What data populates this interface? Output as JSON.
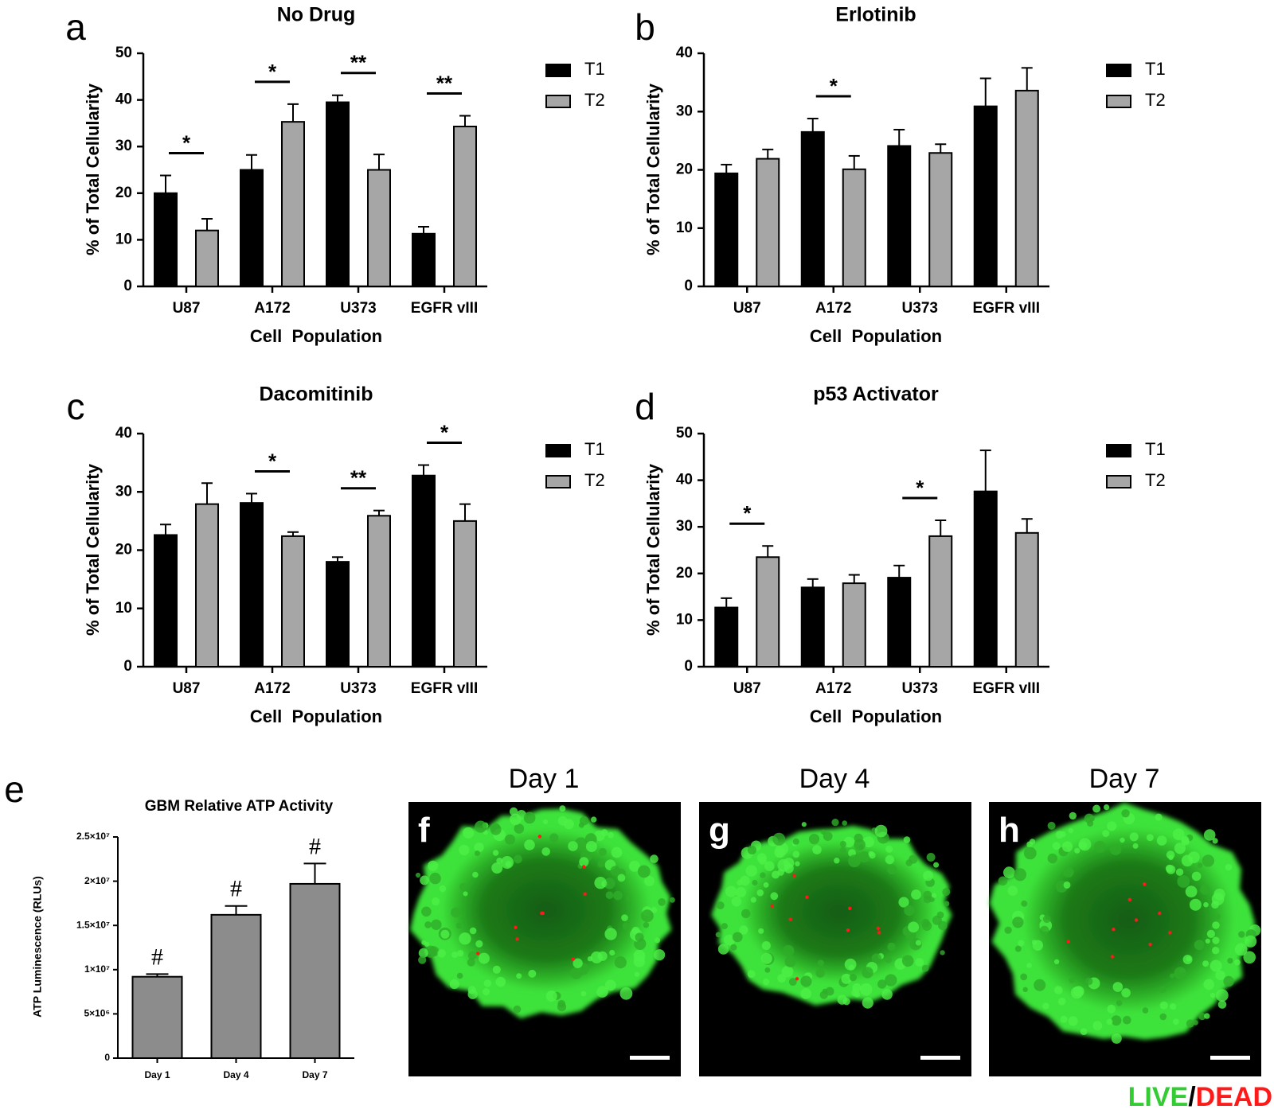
{
  "chart_data": [
    {
      "panel": "a",
      "type": "bar",
      "title": "No Drug",
      "xlabel": "Cell  Population",
      "ylabel": "% of Total Cellularity",
      "categories": [
        "U87",
        "A172",
        "U373",
        "EGFR vIII"
      ],
      "ylim": [
        0,
        50
      ],
      "yticks": [
        "0",
        "10",
        "20",
        "30",
        "40",
        "50"
      ],
      "series": [
        {
          "name": "T1",
          "values": [
            20,
            25,
            39.5,
            11.3
          ],
          "errors": [
            3.8,
            3.2,
            1.5,
            1.5
          ]
        },
        {
          "name": "T2",
          "values": [
            12,
            35.3,
            25,
            34.3
          ],
          "errors": [
            2.5,
            3.8,
            3.3,
            2.3
          ]
        }
      ],
      "significance": [
        {
          "category": "U87",
          "label": "*"
        },
        {
          "category": "A172",
          "label": "*"
        },
        {
          "category": "U373",
          "label": "**"
        },
        {
          "category": "EGFR vIII",
          "label": "**"
        }
      ]
    },
    {
      "panel": "b",
      "type": "bar",
      "title": "Erlotinib",
      "xlabel": "Cell  Population",
      "ylabel": "% of Total Cellularity",
      "categories": [
        "U87",
        "A172",
        "U373",
        "EGFR vIII"
      ],
      "ylim": [
        0,
        40
      ],
      "yticks": [
        "0",
        "10",
        "20",
        "30",
        "40"
      ],
      "series": [
        {
          "name": "T1",
          "values": [
            19.4,
            26.5,
            24.1,
            30.9
          ],
          "errors": [
            1.5,
            2.3,
            2.8,
            4.8
          ]
        },
        {
          "name": "T2",
          "values": [
            21.9,
            20.1,
            22.9,
            33.6
          ],
          "errors": [
            1.6,
            2.3,
            1.5,
            3.9
          ]
        }
      ],
      "significance": [
        {
          "category": "A172",
          "label": "*"
        }
      ]
    },
    {
      "panel": "c",
      "type": "bar",
      "title": "Dacomitinib",
      "xlabel": "Cell  Population",
      "ylabel": "% of Total Cellularity",
      "categories": [
        "U87",
        "A172",
        "U373",
        "EGFR vIII"
      ],
      "ylim": [
        0,
        40
      ],
      "yticks": [
        "0",
        "10",
        "20",
        "30",
        "40"
      ],
      "series": [
        {
          "name": "T1",
          "values": [
            22.6,
            28.1,
            18,
            32.8
          ],
          "errors": [
            1.8,
            1.6,
            0.8,
            1.8
          ]
        },
        {
          "name": "T2",
          "values": [
            27.9,
            22.4,
            25.9,
            25
          ],
          "errors": [
            3.6,
            0.7,
            0.9,
            2.9
          ]
        }
      ],
      "significance": [
        {
          "category": "A172",
          "label": "*"
        },
        {
          "category": "U373",
          "label": "**"
        },
        {
          "category": "EGFR vIII",
          "label": "*"
        }
      ]
    },
    {
      "panel": "d",
      "type": "bar",
      "title": "p53 Activator",
      "xlabel": "Cell  Population",
      "ylabel": "% of Total Cellularity",
      "categories": [
        "U87",
        "A172",
        "U373",
        "EGFR vIII"
      ],
      "ylim": [
        0,
        50
      ],
      "yticks": [
        "0",
        "10",
        "20",
        "30",
        "40",
        "50"
      ],
      "series": [
        {
          "name": "T1",
          "values": [
            12.7,
            17,
            19.1,
            37.6
          ],
          "errors": [
            2,
            1.8,
            2.6,
            8.8
          ]
        },
        {
          "name": "T2",
          "values": [
            23.5,
            17.9,
            28,
            28.7
          ],
          "errors": [
            2.4,
            1.8,
            3.4,
            3
          ]
        }
      ],
      "significance": [
        {
          "category": "U87",
          "label": "*"
        },
        {
          "category": "U373",
          "label": "*"
        }
      ]
    },
    {
      "panel": "e",
      "type": "bar",
      "title": "GBM Relative ATP Activity",
      "xlabel": "",
      "ylabel": "ATP Luminescence (RLUs)",
      "categories": [
        "Day 1",
        "Day 4",
        "Day 7"
      ],
      "ylim": [
        0,
        25000000
      ],
      "yticks": [
        "0",
        "5×10⁶",
        "1×10⁷",
        "1.5×10⁷",
        "2×10⁷",
        "2.5×10⁷"
      ],
      "series": [
        {
          "name": "",
          "values": [
            9200000,
            16200000,
            19700000
          ],
          "errors": [
            300000,
            1000000,
            2300000
          ]
        }
      ],
      "annotations": [
        "#",
        "#",
        "#"
      ]
    }
  ],
  "legend": {
    "t1": "T1",
    "t2": "T2"
  },
  "micrographs": {
    "titles": [
      "Day 1",
      "Day 4",
      "Day 7"
    ],
    "letters": [
      "f",
      "g",
      "h"
    ],
    "stain_live": "LIVE",
    "stain_sep": "/",
    "stain_dead": "DEAD"
  },
  "colors": {
    "t1": "#000000",
    "t2": "#a6a6a6",
    "atp_bar": "#8c8c8c",
    "live": "#33cc33",
    "dead": "#ff1a1a",
    "micro_bg": "#000000"
  }
}
